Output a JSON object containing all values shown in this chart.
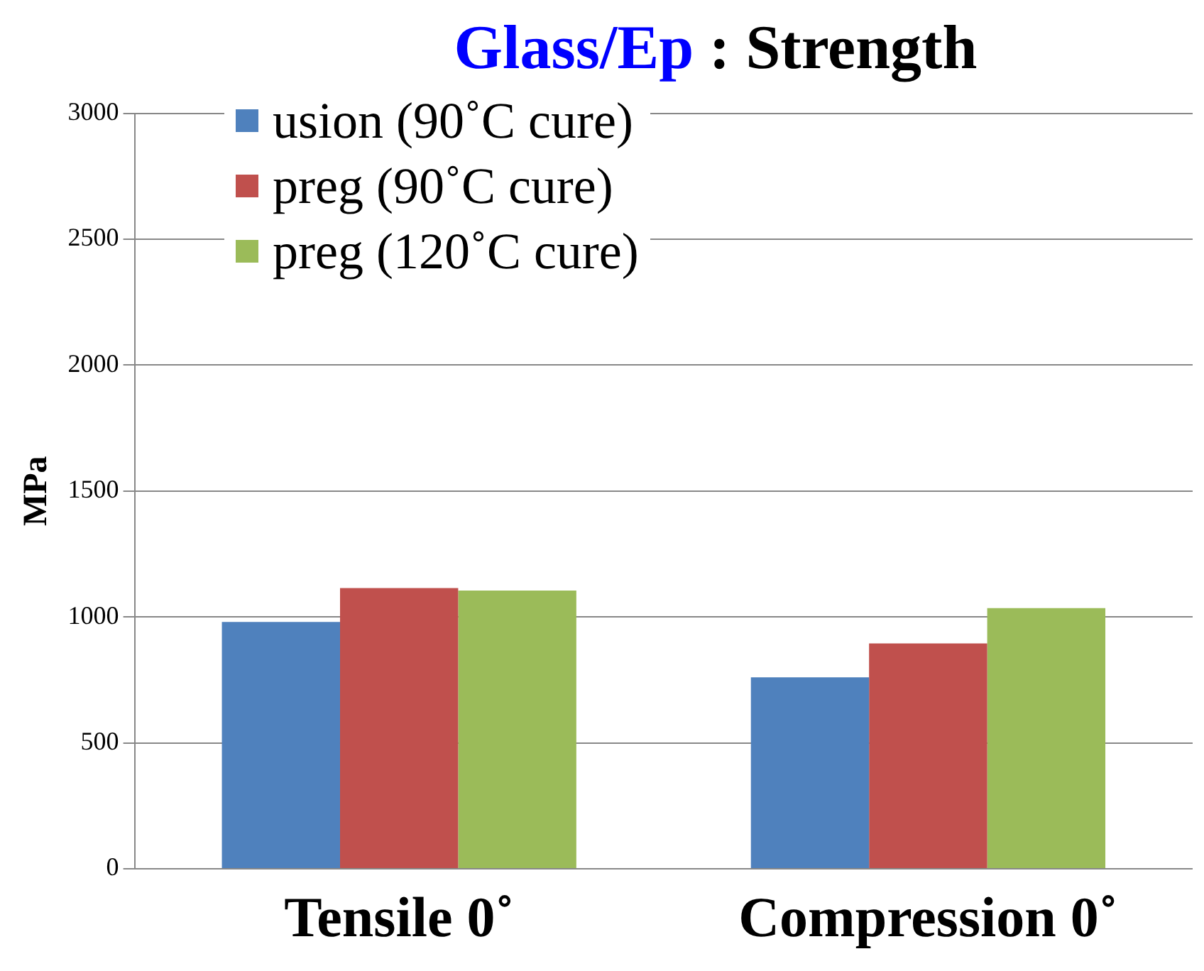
{
  "chart_data": {
    "type": "bar",
    "title": "Glass/Ep : Strength",
    "ylabel": "MPa",
    "categories": [
      "Tensile 0˚",
      "Compression 0˚"
    ],
    "series": [
      {
        "name": "usion (90˚C cure)",
        "color": "#4f81bd",
        "values": [
          980,
          760
        ]
      },
      {
        "name": "preg (90˚C cure)",
        "color": "#c0504d",
        "values": [
          1115,
          895
        ]
      },
      {
        "name": "preg (120˚C cure)",
        "color": "#9bbb59",
        "values": [
          1105,
          1035
        ]
      }
    ],
    "ylim": [
      0,
      3000
    ],
    "yticks": [
      0,
      500,
      1000,
      1500,
      2000,
      2500,
      3000
    ],
    "grid": "y",
    "legend": "top left"
  }
}
